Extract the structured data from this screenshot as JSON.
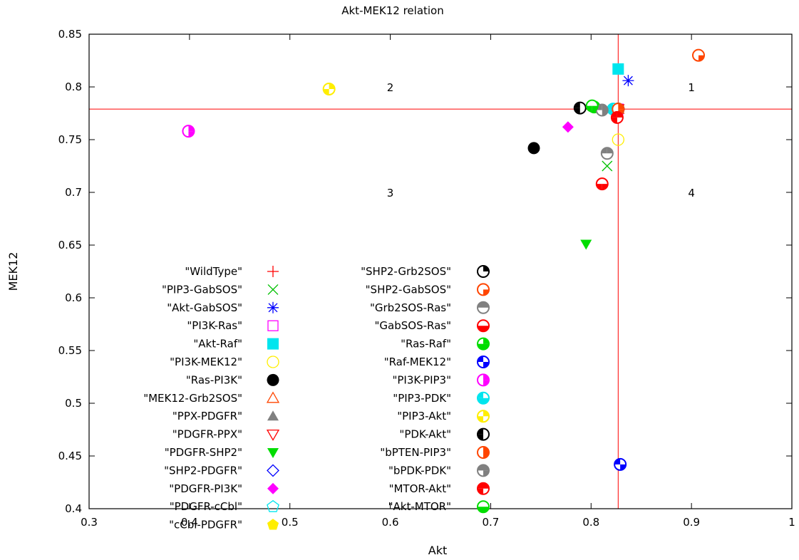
{
  "chart_data": {
    "type": "scatter",
    "title": "Akt-MEK12 relation",
    "xlabel": "Akt",
    "ylabel": "MEK12",
    "xlim": [
      0.3,
      1.0
    ],
    "ylim": [
      0.4,
      0.85
    ],
    "xticks": [
      0.3,
      0.4,
      0.5,
      0.6,
      0.7,
      0.8,
      0.9,
      1.0
    ],
    "yticks": [
      0.4,
      0.45,
      0.5,
      0.55,
      0.6,
      0.65,
      0.7,
      0.75,
      0.8,
      0.85
    ],
    "xtick_labels": [
      "0.3",
      "0.4",
      "0.5",
      "0.6",
      "0.7",
      "0.8",
      "0.9",
      "1"
    ],
    "ytick_labels": [
      "0.4",
      "0.45",
      "0.5",
      "0.55",
      "0.6",
      "0.65",
      "0.7",
      "0.75",
      "0.8",
      "0.85"
    ],
    "grid": false,
    "legend_position": "bottom-left inside",
    "reference_lines": {
      "x": 0.827,
      "y": 0.779,
      "color": "#ff0000"
    },
    "quadrant_labels": [
      {
        "text": "1",
        "x": 0.9,
        "y": 0.8
      },
      {
        "text": "2",
        "x": 0.6,
        "y": 0.8
      },
      {
        "text": "3",
        "x": 0.6,
        "y": 0.7
      },
      {
        "text": "4",
        "x": 0.9,
        "y": 0.7
      }
    ],
    "series": [
      {
        "name": "\"WildType\"",
        "marker": "plus",
        "color": "#ff0000",
        "x": 0.827,
        "y": 0.779
      },
      {
        "name": "\"PIP3-GabSOS\"",
        "marker": "cross",
        "color": "#00c000",
        "x": 0.816,
        "y": 0.725
      },
      {
        "name": "\"Akt-GabSOS\"",
        "marker": "star",
        "color": "#0000ff",
        "x": 0.837,
        "y": 0.806
      },
      {
        "name": "\"PI3K-Ras\"",
        "marker": "open-square",
        "color": "#ff00ff",
        "x": 0.827,
        "y": 0.779
      },
      {
        "name": "\"Akt-Raf\"",
        "marker": "filled-square",
        "color": "#00e5ee",
        "x": 0.827,
        "y": 0.817
      },
      {
        "name": "\"PI3K-MEK12\"",
        "marker": "open-circle",
        "color": "#ffee00",
        "x": 0.827,
        "y": 0.75
      },
      {
        "name": "\"Ras-PI3K\"",
        "marker": "filled-circle",
        "color": "#000000",
        "x": 0.743,
        "y": 0.742
      },
      {
        "name": "\"MEK12-Grb2SOS\"",
        "marker": "open-triangle",
        "color": "#ff4500",
        "x": 0.827,
        "y": 0.779
      },
      {
        "name": "\"PPX-PDGFR\"",
        "marker": "filled-triangle",
        "color": "#808080",
        "x": 0.827,
        "y": 0.779
      },
      {
        "name": "\"PDGFR-PPX\"",
        "marker": "open-triangle-down",
        "color": "#ff0000",
        "x": 0.827,
        "y": 0.779
      },
      {
        "name": "\"PDGFR-SHP2\"",
        "marker": "filled-triangle-down",
        "color": "#00dd00",
        "x": 0.795,
        "y": 0.651
      },
      {
        "name": "\"SHP2-PDGFR\"",
        "marker": "open-diamond",
        "color": "#0000ff",
        "x": 0.827,
        "y": 0.779
      },
      {
        "name": "\"PDGFR-PI3K\"",
        "marker": "filled-diamond",
        "color": "#ff00ff",
        "x": 0.777,
        "y": 0.762
      },
      {
        "name": "\"PDGFR-cCbl\"",
        "marker": "open-pentagon",
        "color": "#00e5ee",
        "x": 0.827,
        "y": 0.779
      },
      {
        "name": "\"cCbl-PDGFR\"",
        "marker": "filled-pentagon",
        "color": "#ffee00",
        "x": 0.827,
        "y": 0.779
      },
      {
        "name": "\"SHP2-Grb2SOS\"",
        "marker": "circ-q1",
        "color": "#000000",
        "x": 0.827,
        "y": 0.779
      },
      {
        "name": "\"SHP2-GabSOS\"",
        "marker": "circ-q4",
        "color": "#ff4500",
        "x": 0.907,
        "y": 0.83
      },
      {
        "name": "\"Grb2SOS-Ras\"",
        "marker": "circ-q12",
        "color": "#808080",
        "x": 0.816,
        "y": 0.737
      },
      {
        "name": "\"GabSOS-Ras\"",
        "marker": "circ-bottom",
        "color": "#ff0000",
        "x": 0.811,
        "y": 0.708
      },
      {
        "name": "\"Ras-Raf\"",
        "marker": "circ-q134",
        "color": "#00dd00",
        "x": 0.803,
        "y": 0.781
      },
      {
        "name": "\"Raf-MEK12\"",
        "marker": "circ-q24",
        "color": "#0000ff",
        "x": 0.829,
        "y": 0.442
      },
      {
        "name": "\"PI3K-PIP3\"",
        "marker": "circ-right",
        "color": "#ff00ff",
        "x": 0.399,
        "y": 0.758
      },
      {
        "name": "\"PIP3-PDK\"",
        "marker": "circ-q234",
        "color": "#00e5ee",
        "x": 0.822,
        "y": 0.779
      },
      {
        "name": "\"PIP3-Akt\"",
        "marker": "circ-q13",
        "color": "#ffee00",
        "x": 0.539,
        "y": 0.798
      },
      {
        "name": "\"PDK-Akt\"",
        "marker": "circ-left",
        "color": "#000000",
        "x": 0.789,
        "y": 0.78
      },
      {
        "name": "\"bPTEN-PIP3\"",
        "marker": "circ-q14",
        "color": "#ff4500",
        "x": 0.827,
        "y": 0.779
      },
      {
        "name": "\"bPDK-PDK\"",
        "marker": "circ-q124",
        "color": "#808080",
        "x": 0.811,
        "y": 0.778
      },
      {
        "name": "\"MTOR-Akt\"",
        "marker": "circ-q123",
        "color": "#ff0000",
        "x": 0.826,
        "y": 0.771
      },
      {
        "name": "\"Akt-MTOR\"",
        "marker": "circ-q34",
        "color": "#00dd00",
        "x": 0.801,
        "y": 0.782
      }
    ]
  }
}
